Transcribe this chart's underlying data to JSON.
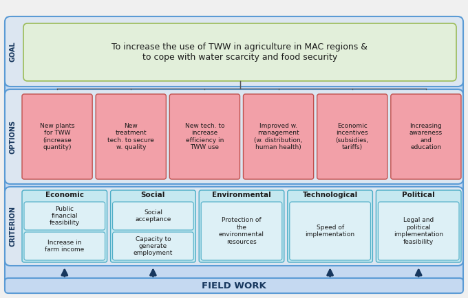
{
  "fig_width": 6.8,
  "fig_height": 4.34,
  "dpi": 100,
  "bg_color": "#f0f0f0",
  "outer_border_color": "#5b9bd5",
  "outer_bg": "#c5d9f1",
  "panel_bg": "#dce6f1",
  "goal_text": "To increase the use of TWW in agriculture in MAC regions &\nto cope with water scarcity and food security",
  "goal_box_color": "#e2efda",
  "goal_box_border": "#9bbb59",
  "goal_label": "GOAL",
  "options_label": "OPTIONS",
  "options_box_color": "#f2a0a8",
  "options_box_border": "#c0504d",
  "options": [
    "New plants\nfor TWW\n(increase\nquantity)",
    "New\ntreatment\ntech. to secure\nw. quality",
    "New tech. to\nincrease\nefficiency in\nTWW use",
    "Improved w.\nmanagement\n(w. distribution,\nhuman health)",
    "Economic\nincentives\n(subsidies,\ntariffs)",
    "Increasing\nawareness\nand\neducation"
  ],
  "criterion_label": "CRITERION",
  "criterion_col_bg": "#c5e8f0",
  "criterion_col_border": "#4bacc6",
  "criterion_sub_color": "#c5e8f0",
  "criterion_sub_border": "#4bacc6",
  "criteria": [
    {
      "title": "Economic",
      "sub": [
        "Increase in\nfarm income",
        "Public\nfinancial\nfeasibility"
      ]
    },
    {
      "title": "Social",
      "sub": [
        "Capacity to\ngenerate\nemployment",
        "Social\nacceptance"
      ]
    },
    {
      "title": "Environmental",
      "sub": [
        "Protection of\nthe\nenvironmental\nresources"
      ]
    },
    {
      "title": "Technological",
      "sub": [
        "Speed of\nimplementation"
      ]
    },
    {
      "title": "Political",
      "sub": [
        "Legal and\npolitical\nimplementation\nfeasibility"
      ]
    }
  ],
  "fieldwork_text": "FIELD WORK",
  "fieldwork_bg": "#c5d9f1",
  "fieldwork_border": "#5b9bd5",
  "arrow_color": "#17375e",
  "line_color": "#555555",
  "label_color": "#17375e",
  "label_fontsize": 7.0,
  "text_fontsize": 6.5,
  "header_fontsize": 7.5,
  "goal_fontsize": 9.0,
  "fieldwork_fontsize": 9.5
}
